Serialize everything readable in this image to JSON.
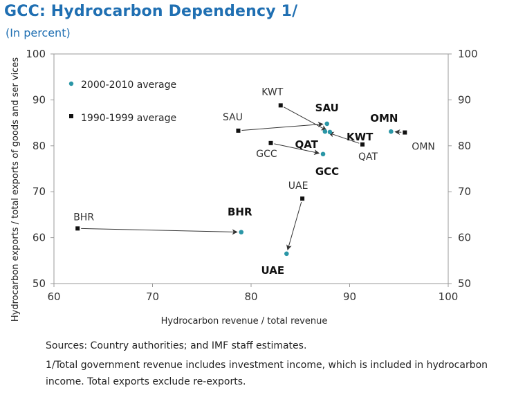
{
  "title": "GCC: Hydrocarbon Dependency 1/",
  "subtitle": "(In percent)",
  "sources": "Sources: Country authorities; and IMF staff estimates.",
  "footnote": "1/Total government revenue includes investment income, which is included in hydrocarbon income. Total exports exclude re-exports.",
  "colors": {
    "accent": "#1f6fb2",
    "teal": "#2a96a6",
    "black": "#111111"
  },
  "chart_data": {
    "type": "scatter",
    "xlabel": "Hydrocarbon revenue / total revenue",
    "ylabel": "Hydrocarbon exports / total exports of goods and ser vices",
    "xlim": [
      60,
      100
    ],
    "ylim": [
      50,
      100
    ],
    "xticks": [
      60,
      70,
      80,
      90,
      100
    ],
    "yticks": [
      50,
      60,
      70,
      80,
      90,
      100
    ],
    "grid": false,
    "legend_position": "top-left",
    "series": [
      {
        "name": "2000-2010 average",
        "marker": "dot",
        "color": "#2a96a6",
        "points": [
          {
            "label": "SAU",
            "x": 87.7,
            "y": 84.8
          },
          {
            "label": "KWT",
            "x": 88.0,
            "y": 83.0
          },
          {
            "label": "QAT",
            "x": 87.5,
            "y": 83.1
          },
          {
            "label": "OMN",
            "x": 94.2,
            "y": 83.1
          },
          {
            "label": "GCC",
            "x": 87.3,
            "y": 78.2
          },
          {
            "label": "UAE",
            "x": 83.6,
            "y": 56.5
          },
          {
            "label": "BHR",
            "x": 79.0,
            "y": 61.2
          }
        ]
      },
      {
        "name": "1990-1999 average",
        "marker": "square",
        "color": "#111111",
        "points": [
          {
            "label": "KWT",
            "x": 83.0,
            "y": 88.8
          },
          {
            "label": "SAU",
            "x": 78.7,
            "y": 83.3
          },
          {
            "label": "GCC",
            "x": 82.0,
            "y": 80.6
          },
          {
            "label": "QAT",
            "x": 91.3,
            "y": 80.3
          },
          {
            "label": "OMN",
            "x": 95.6,
            "y": 82.9
          },
          {
            "label": "UAE",
            "x": 85.2,
            "y": 68.5
          },
          {
            "label": "BHR",
            "x": 62.4,
            "y": 62.0
          }
        ]
      }
    ]
  }
}
